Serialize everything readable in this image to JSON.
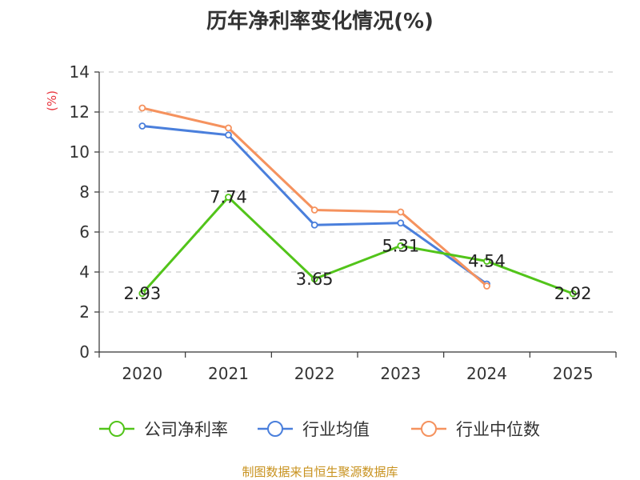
{
  "chart_data": {
    "type": "line",
    "title": "历年净利率变化情况(%)",
    "ylabel": "(%)",
    "xlabel": "",
    "categories": [
      "2020",
      "2021",
      "2022",
      "2023",
      "2024",
      "2025"
    ],
    "ylim": [
      0,
      14
    ],
    "yticks": [
      0,
      2,
      4,
      6,
      8,
      10,
      12,
      14
    ],
    "grid": true,
    "legend_position": "bottom",
    "series": [
      {
        "name": "公司净利率",
        "color": "#52c41a",
        "values": [
          2.93,
          7.74,
          3.65,
          5.31,
          4.54,
          2.92
        ],
        "labels": [
          "2.93",
          "7.74",
          "3.65",
          "5.31",
          "4.54",
          "2.92"
        ],
        "show_labels": true
      },
      {
        "name": "行业均值",
        "color": "#4a7fdc",
        "values": [
          11.3,
          10.85,
          6.35,
          6.45,
          3.4,
          null
        ],
        "show_labels": false
      },
      {
        "name": "行业中位数",
        "color": "#f5925e",
        "values": [
          12.2,
          11.2,
          7.1,
          7.0,
          3.3,
          null
        ],
        "show_labels": false
      }
    ]
  },
  "source": "制图数据来自恒生聚源数据库"
}
